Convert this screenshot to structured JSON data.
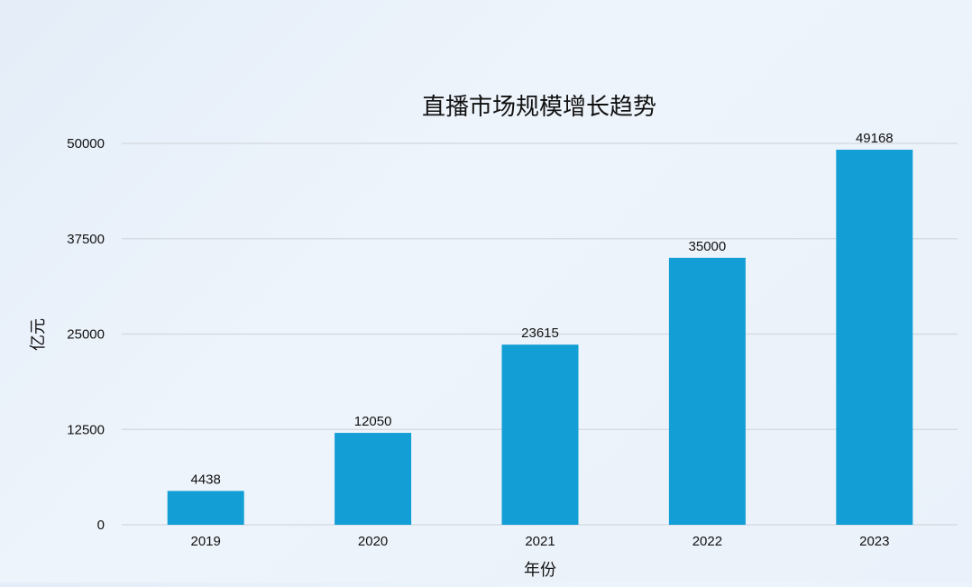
{
  "chart_data": {
    "type": "bar",
    "title": "直播市场规模增长趋势",
    "xlabel": "年份",
    "ylabel": "亿元",
    "categories": [
      "2019",
      "2020",
      "2021",
      "2022",
      "2023"
    ],
    "values": [
      4438,
      12050,
      23615,
      35000,
      49168
    ],
    "data_labels": [
      "4438",
      "12050",
      "23615",
      "35000",
      "49168"
    ],
    "yticks": [
      "0",
      "12500",
      "25000",
      "37500",
      "50000"
    ],
    "ytick_values": [
      0,
      12500,
      25000,
      37500,
      50000
    ],
    "ylim": [
      0,
      50000
    ],
    "grid": true,
    "legend": "none",
    "bar_color": "#139fd6"
  }
}
